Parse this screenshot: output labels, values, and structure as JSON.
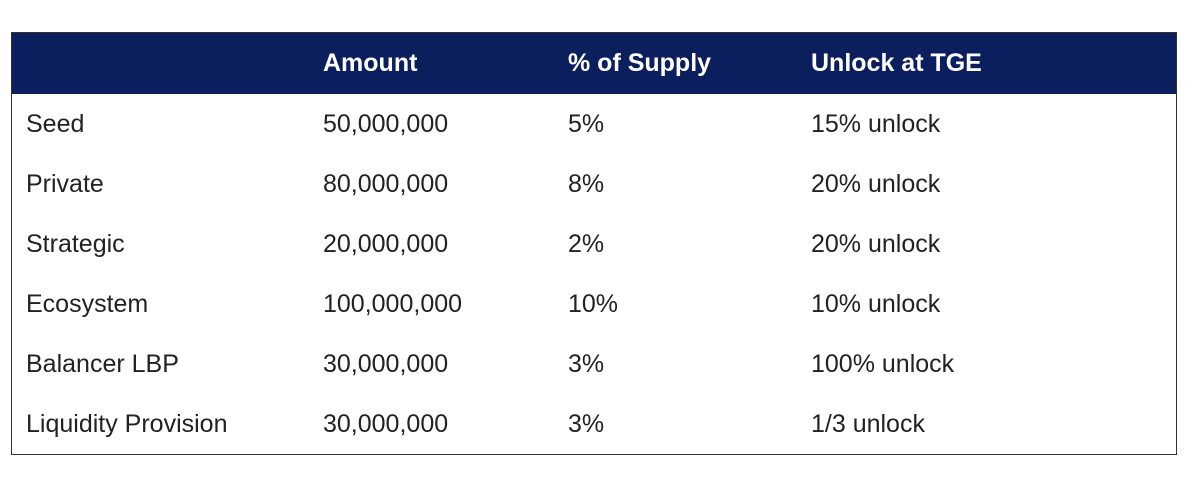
{
  "table": {
    "header": [
      "Amount",
      "% of Supply",
      "Unlock at TGE"
    ],
    "rows": [
      [
        "Seed",
        "50,000,000",
        "5%",
        "15% unlock"
      ],
      [
        "Private",
        "80,000,000",
        "8%",
        "20% unlock"
      ],
      [
        "Strategic",
        "20,000,000",
        "2%",
        "20% unlock"
      ],
      [
        "Ecosystem",
        "100,000,000",
        "10%",
        "10% unlock"
      ],
      [
        "Balancer LBP",
        "30,000,000",
        "3%",
        "100% unlock"
      ],
      [
        "Liquidity Provision",
        "30,000,000",
        "3%",
        "1/3 unlock"
      ]
    ]
  }
}
